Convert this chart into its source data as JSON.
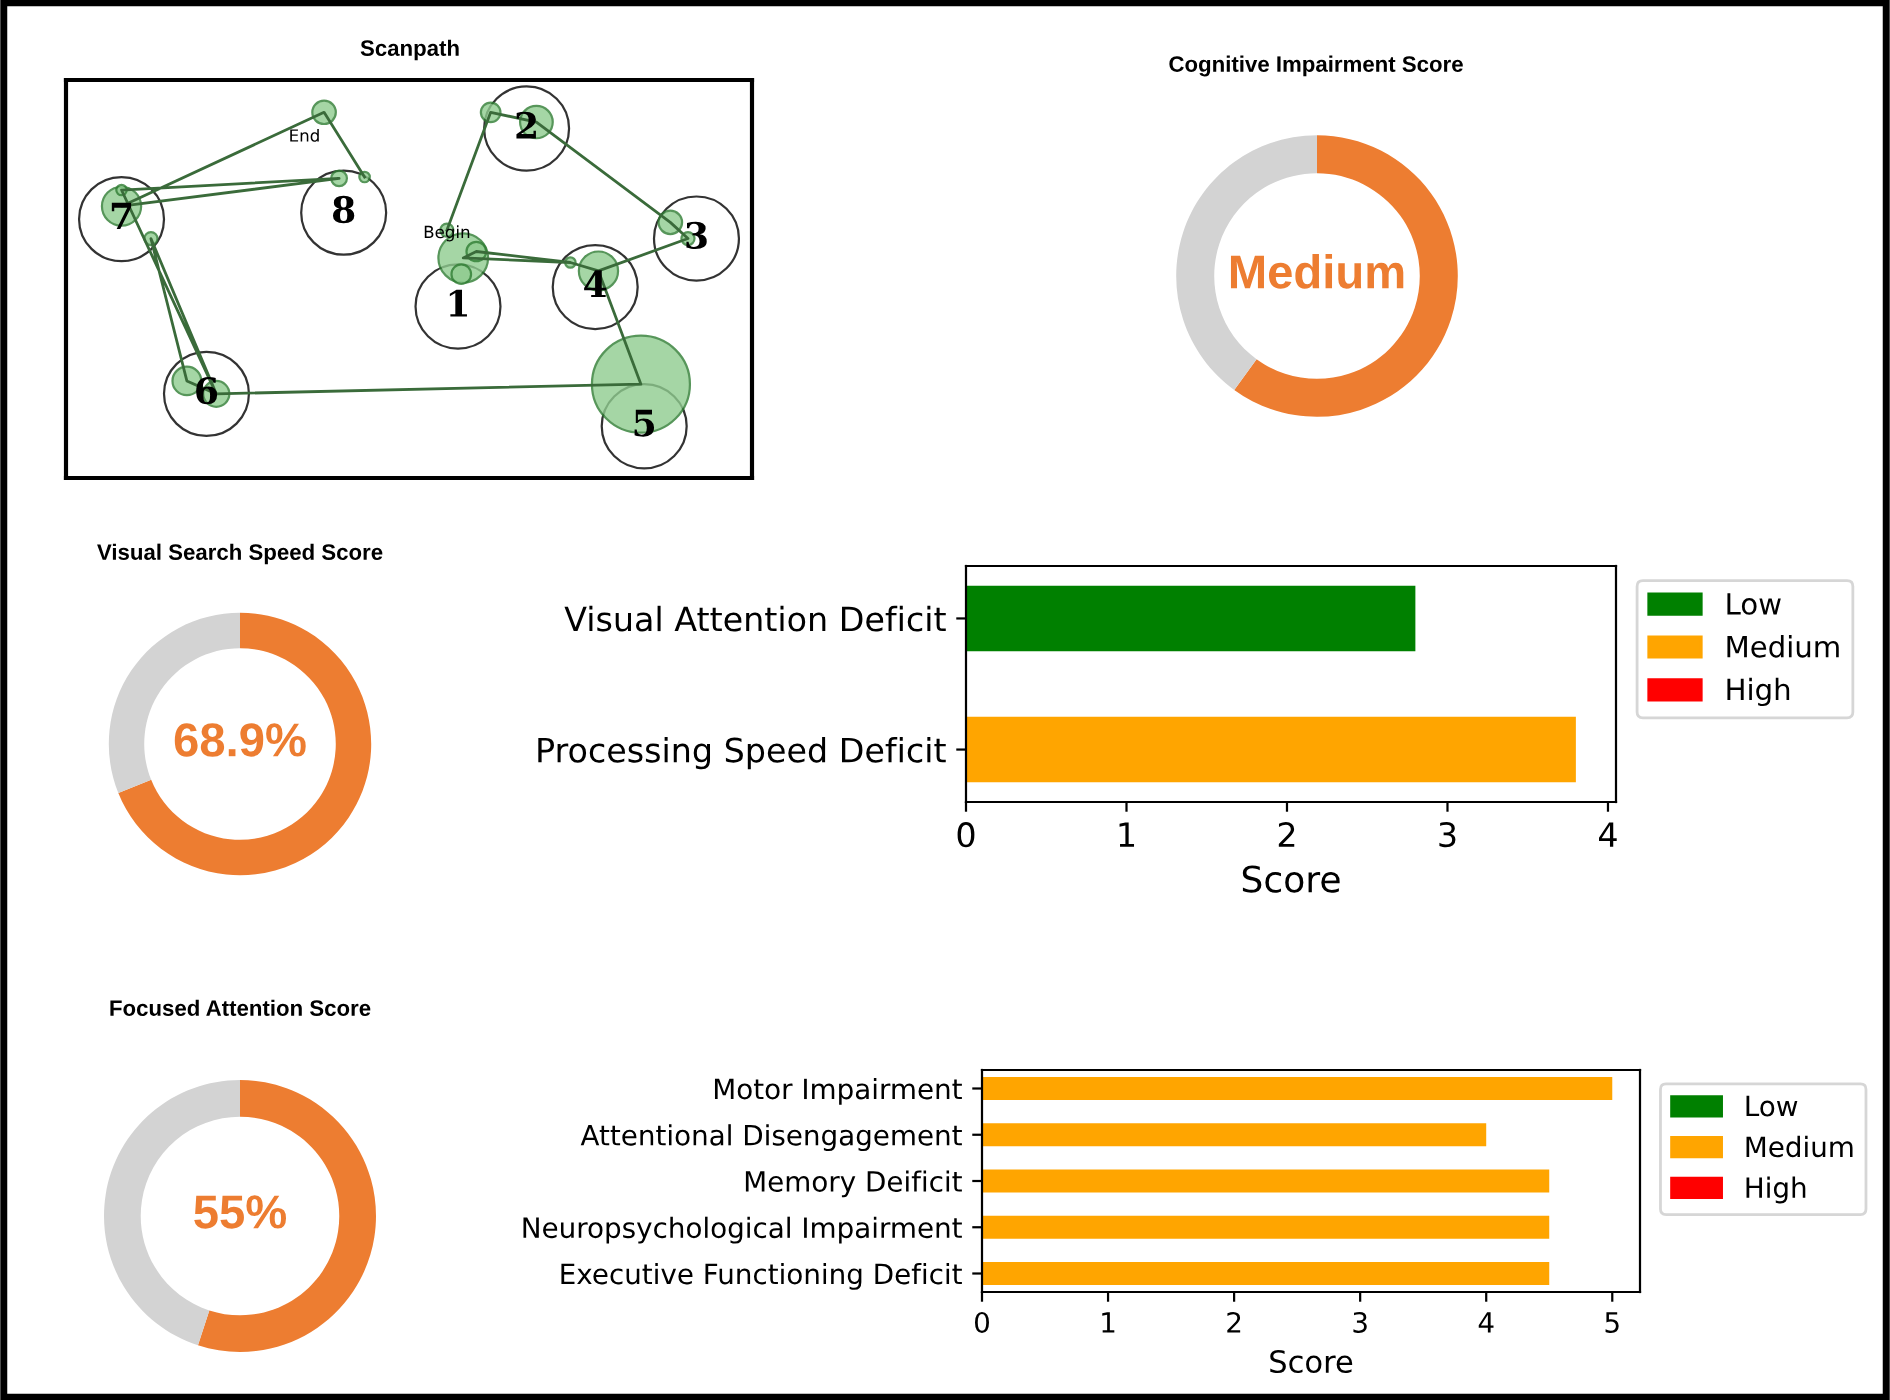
{
  "chart_data": [
    {
      "type": "other",
      "title": "Scanpath",
      "annotations": [
        "1",
        "2",
        "3",
        "4",
        "5",
        "6",
        "7",
        "8",
        "Begin",
        "End"
      ]
    },
    {
      "type": "donut",
      "title": "Cognitive Impairment Score",
      "categories": [
        null,
        null
      ],
      "values": [
        60,
        40
      ],
      "colors": [
        "#ed7d31",
        "#d3d3d3"
      ],
      "annotations": [
        "Medium"
      ]
    },
    {
      "type": "donut",
      "title": "Visual Search Speed Score",
      "categories": [
        null,
        null
      ],
      "values": [
        68.9,
        31.1
      ],
      "colors": [
        "#ed7d31",
        "#d3d3d3"
      ],
      "annotations": [
        "68.9%"
      ]
    },
    {
      "type": "bar",
      "orientation": "horizontal",
      "categories": [
        "Visual Attention Deficit",
        "Processing Speed Deficit"
      ],
      "xlabel": "Score",
      "xlim": [
        0,
        4.05
      ],
      "xticks": [
        0,
        1,
        2,
        3,
        4
      ],
      "legend": "right",
      "grid": false,
      "series": [
        {
          "name": "Low",
          "color": "#008000",
          "values": [
            2.8,
            null
          ]
        },
        {
          "name": "Medium",
          "color": "#ffa500",
          "values": [
            null,
            3.8
          ]
        },
        {
          "name": "High",
          "color": "#ff0000",
          "values": [
            null,
            null
          ]
        }
      ]
    },
    {
      "type": "donut",
      "title": "Focused Attention Score",
      "categories": [
        null,
        null
      ],
      "values": [
        55,
        45
      ],
      "colors": [
        "#ed7d31",
        "#d3d3d3"
      ],
      "annotations": [
        "55%"
      ]
    },
    {
      "type": "bar",
      "orientation": "horizontal",
      "categories": [
        "Motor Impairment",
        "Attentional Disengagement",
        "Memory Deificit",
        "Neuropsychological Impairment",
        "Executive Functioning Deficit"
      ],
      "xlabel": "Score",
      "xlim": [
        0,
        5.22
      ],
      "xticks": [
        0,
        1,
        2,
        3,
        4,
        5
      ],
      "legend": "right",
      "grid": false,
      "series": [
        {
          "name": "Low",
          "color": "#008000",
          "values": [
            null,
            null,
            null,
            null,
            null
          ]
        },
        {
          "name": "Medium",
          "color": "#ffa500",
          "values": [
            5,
            4,
            4.5,
            4.5,
            4.5
          ]
        },
        {
          "name": "High",
          "color": "#ff0000",
          "values": [
            null,
            null,
            null,
            null,
            null
          ]
        }
      ]
    }
  ]
}
